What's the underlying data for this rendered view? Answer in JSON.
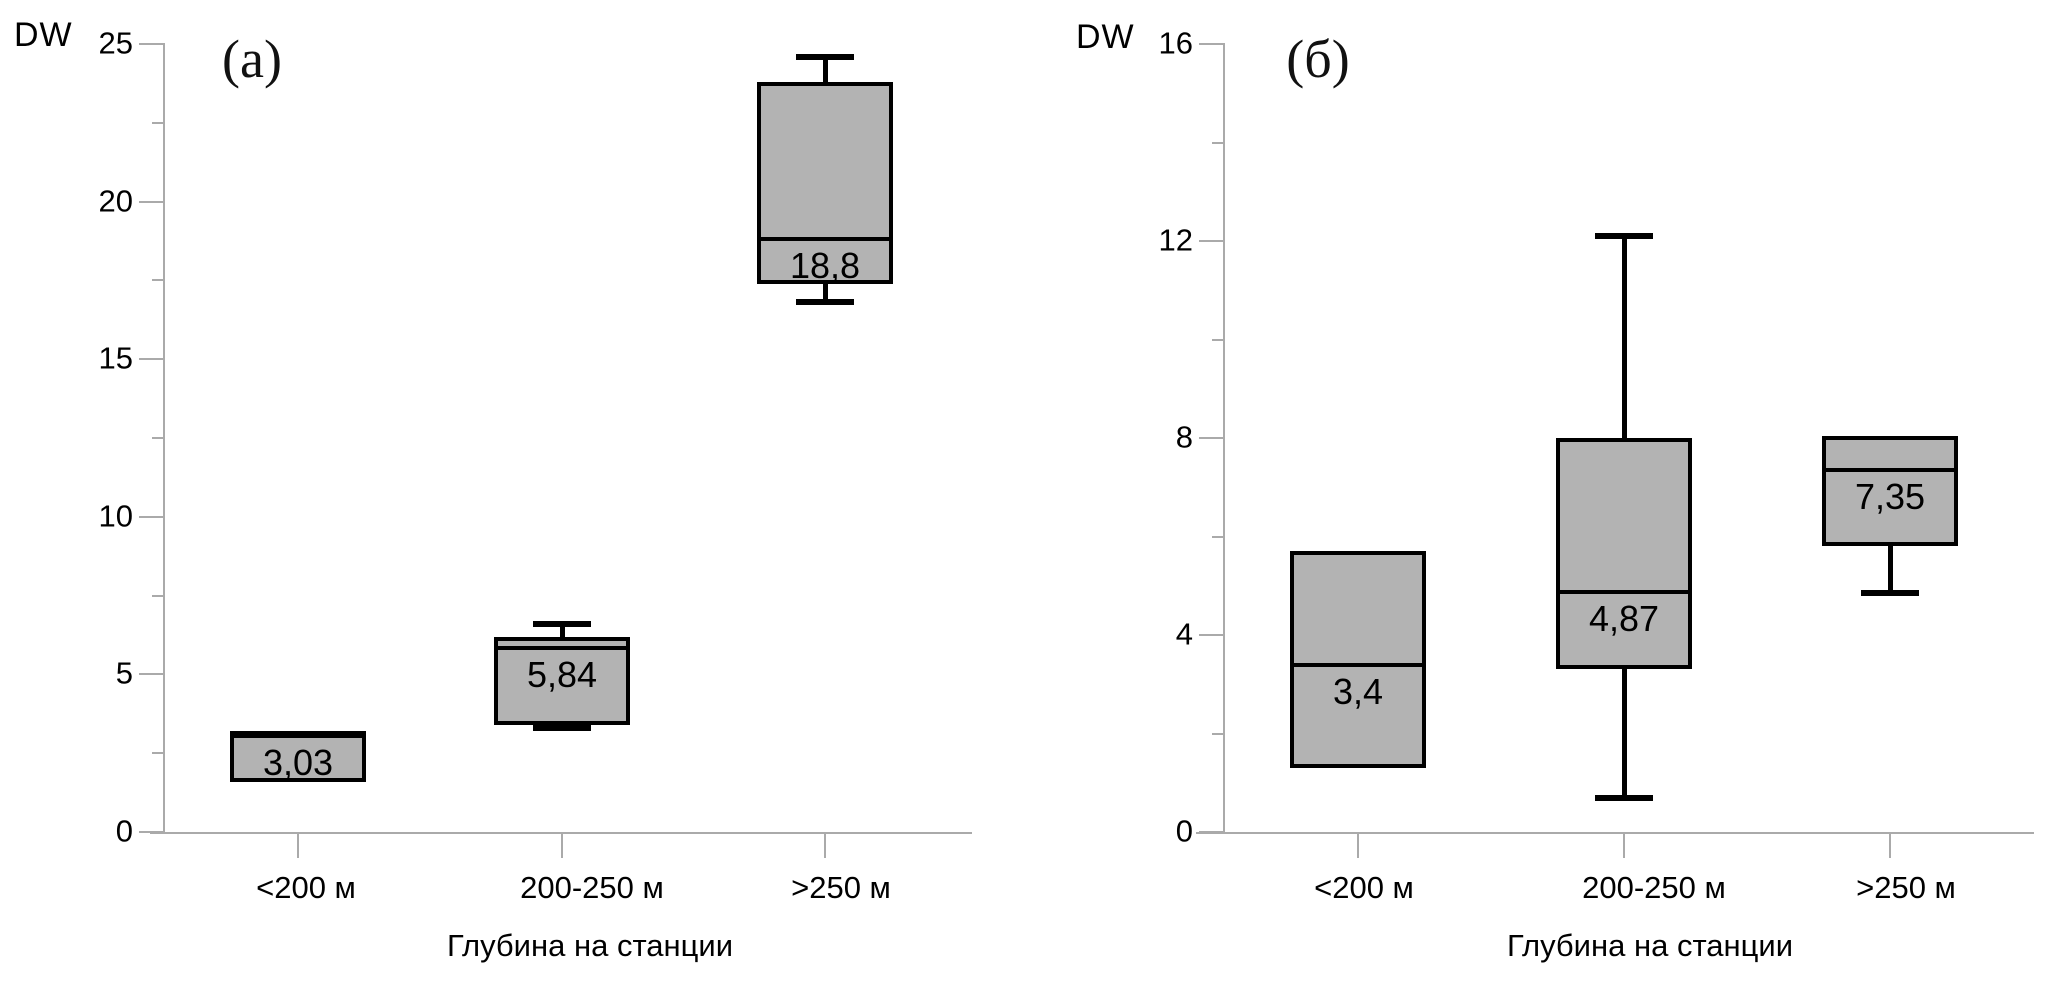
{
  "figure": {
    "background": "#ffffff",
    "text_color": "#000000",
    "axis_color": "#aaaaaa",
    "box_fill": "#b3b3b3",
    "box_border": "#000000"
  },
  "chart_data": [
    {
      "type": "box",
      "panel_label": "(а)",
      "y_axis_title": "DW",
      "xlabel": "Глубина на станции",
      "categories": [
        "<200 м",
        "200-250 м",
        ">250 м"
      ],
      "ylim": [
        0,
        25
      ],
      "y_major_step": 5,
      "y_minor_step": 2.5,
      "grid": false,
      "legend": "none",
      "boxes": [
        {
          "category": "<200 м",
          "q1": 1.6,
          "median": 3.03,
          "q3": 3.2,
          "whisker_low": null,
          "whisker_high": null,
          "median_label": "3,03"
        },
        {
          "category": "200-250 м",
          "q1": 3.4,
          "median": 5.84,
          "q3": 6.2,
          "whisker_low": 3.3,
          "whisker_high": 6.6,
          "median_label": "5,84"
        },
        {
          "category": ">250 м",
          "q1": 17.4,
          "median": 18.8,
          "q3": 23.8,
          "whisker_low": 16.8,
          "whisker_high": 24.6,
          "median_label": "18,8"
        }
      ]
    },
    {
      "type": "box",
      "panel_label": "(б)",
      "y_axis_title": "DW",
      "xlabel": "Глубина на станции",
      "categories": [
        "<200 м",
        "200-250 м",
        ">250 м"
      ],
      "ylim": [
        0,
        16
      ],
      "y_major_step": 4,
      "y_minor_step": 2,
      "grid": false,
      "legend": "none",
      "boxes": [
        {
          "category": "<200 м",
          "q1": 1.3,
          "median": 3.4,
          "q3": 5.7,
          "whisker_low": null,
          "whisker_high": null,
          "median_label": "3,4"
        },
        {
          "category": "200-250 м",
          "q1": 3.3,
          "median": 4.87,
          "q3": 8.0,
          "whisker_low": 0.7,
          "whisker_high": 12.1,
          "median_label": "4,87"
        },
        {
          "category": ">250 м",
          "q1": 5.8,
          "median": 7.35,
          "q3": 8.05,
          "whisker_low": 4.85,
          "whisker_high": null,
          "median_label": "7,35"
        }
      ]
    }
  ]
}
